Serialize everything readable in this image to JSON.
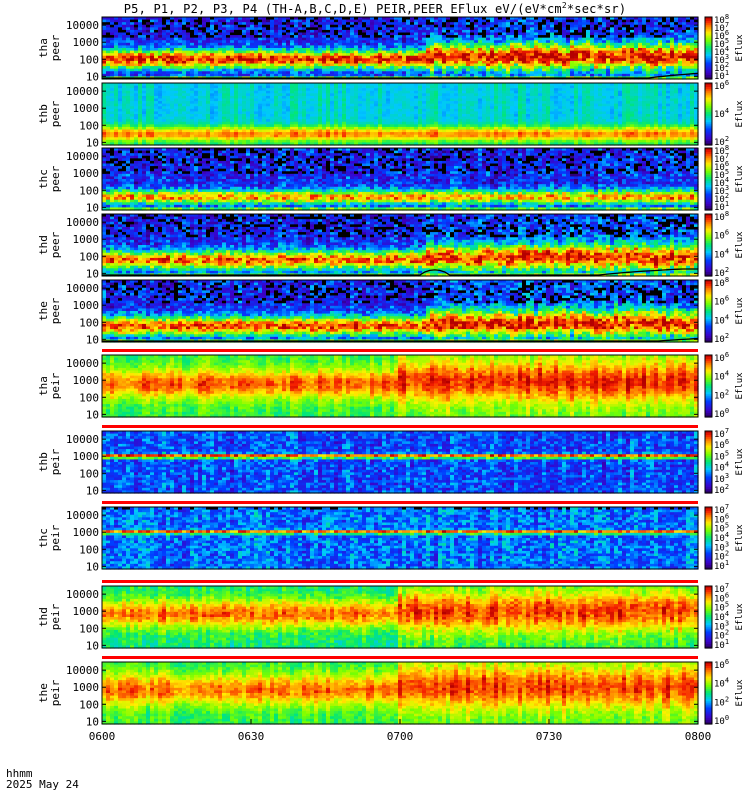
{
  "title_prefix": "P5, P1, P2, P3, P4 (TH-A,B,C,D,E) PEIR,PEER EFlux eV/(eV*cm",
  "title_sup": "2",
  "title_suffix": "*sec*sr)",
  "footer": {
    "line1": "hhmm",
    "line2": "2025 May 24"
  },
  "colors": {
    "frame": "#000000",
    "stripe": "#ff0000",
    "background": "#ffffff"
  },
  "colorbar_label": "Eflux",
  "chart_data": {
    "type": "heatmap",
    "xlabel": "",
    "x_ticks": [
      "0600",
      "0630",
      "0700",
      "0730",
      "0800"
    ],
    "x_tick_minutes": [
      0,
      30,
      60,
      90,
      120
    ],
    "xlim_minutes": [
      0,
      120
    ],
    "y_scale": "log",
    "y_ticks": [
      "10",
      "100",
      "1000",
      "10000"
    ],
    "ylim_eV": [
      7,
      30000
    ],
    "panels": [
      {
        "probe": "tha",
        "species": "peer",
        "label1": "tha",
        "label2": "peer",
        "cbar_log_range": [
          1,
          8
        ],
        "cbar_ticks": [
          "10",
          "10",
          "10",
          "10",
          "10",
          "10",
          "10",
          "10"
        ],
        "cbar_exps": [
          "1",
          "2",
          "3",
          "4",
          "5",
          "6",
          "7",
          "8"
        ],
        "peak_eV": 100,
        "width_decades": 0.55,
        "peak_level": 0.93,
        "bg_level": 0.18,
        "bg_noise": 0.25,
        "event_start_min": 65,
        "floor_line": "rising-after-110",
        "upper_speckle": true
      },
      {
        "probe": "thb",
        "species": "peer",
        "label1": "thb",
        "label2": "peer",
        "cbar_log_range": [
          2,
          6
        ],
        "cbar_ticks": [
          "10",
          "10",
          "10"
        ],
        "cbar_exps": [
          "2",
          "4",
          "6"
        ],
        "peak_eV": 30,
        "width_decades": 0.45,
        "peak_level": 0.85,
        "bg_level": 0.42,
        "bg_noise": 0.06,
        "event_start_min": null,
        "floor_line": "none",
        "upper_speckle": false
      },
      {
        "probe": "thc",
        "species": "peer",
        "label1": "thc",
        "label2": "peer",
        "cbar_log_range": [
          1,
          8
        ],
        "cbar_ticks": [
          "10",
          "10",
          "10",
          "10",
          "10",
          "10",
          "10",
          "10"
        ],
        "cbar_exps": [
          "1",
          "2",
          "3",
          "4",
          "5",
          "6",
          "7",
          "8"
        ],
        "peak_eV": 40,
        "width_decades": 0.4,
        "peak_level": 0.82,
        "bg_level": 0.2,
        "bg_noise": 0.25,
        "event_start_min": null,
        "floor_line": "none",
        "upper_speckle": true
      },
      {
        "probe": "thd",
        "species": "peer",
        "label1": "thd",
        "label2": "peer",
        "cbar_log_range": [
          2,
          8
        ],
        "cbar_ticks": [
          "10",
          "10",
          "10",
          "10"
        ],
        "cbar_exps": [
          "2",
          "4",
          "6",
          "8"
        ],
        "peak_eV": 60,
        "width_decades": 0.55,
        "peak_level": 0.88,
        "bg_level": 0.2,
        "bg_noise": 0.25,
        "event_start_min": 65,
        "floor_line": "bumps",
        "upper_speckle": true
      },
      {
        "probe": "the",
        "species": "peer",
        "label1": "the",
        "label2": "peer",
        "cbar_log_range": [
          1,
          8
        ],
        "cbar_ticks": [
          "10",
          "10",
          "10",
          "10"
        ],
        "cbar_exps": [
          "2",
          "4",
          "6",
          "8"
        ],
        "peak_eV": 60,
        "width_decades": 0.55,
        "peak_level": 0.9,
        "bg_level": 0.2,
        "bg_noise": 0.25,
        "event_start_min": 65,
        "floor_line": "rising-after-112",
        "upper_speckle": true
      },
      {
        "probe": "tha",
        "species": "peir",
        "label1": "tha",
        "label2": "peir",
        "cbar_log_range": [
          0,
          6
        ],
        "cbar_ticks": [
          "10",
          "10",
          "10",
          "10"
        ],
        "cbar_exps": [
          "0",
          "2",
          "4",
          "6"
        ],
        "peak_eV": 600,
        "width_decades": 0.85,
        "peak_level": 0.88,
        "bg_level": 0.55,
        "bg_noise": 0.1,
        "event_start_min": 60,
        "floor_line": "none",
        "upper_speckle": false
      },
      {
        "probe": "thb",
        "species": "peir",
        "label1": "thb",
        "label2": "peir",
        "cbar_log_range": [
          1,
          7
        ],
        "cbar_ticks": [
          "10",
          "10",
          "10",
          "10",
          "10",
          "10"
        ],
        "cbar_exps": [
          "2",
          "3",
          "4",
          "5",
          "6",
          "7"
        ],
        "peak_eV": 1000,
        "width_decades": 0.12,
        "peak_level": 0.95,
        "bg_level": 0.25,
        "bg_noise": 0.22,
        "event_start_min": null,
        "floor_line": "none",
        "upper_speckle": false
      },
      {
        "probe": "thc",
        "species": "peir",
        "label1": "thc",
        "label2": "peir",
        "cbar_log_range": [
          1,
          7
        ],
        "cbar_ticks": [
          "10",
          "10",
          "10",
          "10",
          "10",
          "10",
          "10"
        ],
        "cbar_exps": [
          "1",
          "2",
          "3",
          "4",
          "5",
          "6",
          "7"
        ],
        "peak_eV": 1000,
        "width_decades": 0.1,
        "peak_level": 0.95,
        "bg_level": 0.3,
        "bg_noise": 0.22,
        "event_start_min": null,
        "floor_line": "none",
        "upper_speckle": true
      },
      {
        "probe": "thd",
        "species": "peir",
        "label1": "thd",
        "label2": "peir",
        "cbar_log_range": [
          1,
          7
        ],
        "cbar_ticks": [
          "10",
          "10",
          "10",
          "10",
          "10",
          "10",
          "10"
        ],
        "cbar_exps": [
          "1",
          "2",
          "3",
          "4",
          "5",
          "6",
          "7"
        ],
        "peak_eV": 700,
        "width_decades": 0.85,
        "peak_level": 0.86,
        "bg_level": 0.5,
        "bg_noise": 0.12,
        "event_start_min": 60,
        "floor_line": "none",
        "upper_speckle": false
      },
      {
        "probe": "the",
        "species": "peir",
        "label1": "the",
        "label2": "peir",
        "cbar_log_range": [
          0,
          6
        ],
        "cbar_ticks": [
          "10",
          "10",
          "10",
          "10"
        ],
        "cbar_exps": [
          "0",
          "2",
          "4",
          "6"
        ],
        "peak_eV": 700,
        "width_decades": 0.9,
        "peak_level": 0.86,
        "bg_level": 0.55,
        "bg_noise": 0.1,
        "event_start_min": 60,
        "floor_line": "none",
        "upper_speckle": false
      }
    ]
  }
}
